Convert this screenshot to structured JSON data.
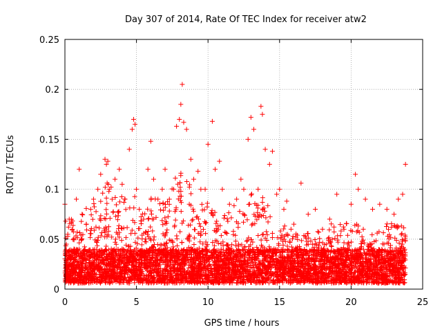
{
  "chart_data": {
    "type": "scatter",
    "title": "Day 307 of 2014, Rate Of TEC Index for receiver atw2",
    "xlabel": "GPS time / hours",
    "ylabel": "ROTI / TECUs",
    "xlim": [
      0,
      25
    ],
    "ylim": [
      0,
      0.25
    ],
    "xticks": [
      0,
      5,
      10,
      15,
      20,
      25
    ],
    "xtick_labels": [
      "0",
      "5",
      "10",
      "15",
      "20",
      "25"
    ],
    "yticks": [
      0,
      0.05,
      0.1,
      0.15,
      0.2,
      0.25
    ],
    "ytick_labels": [
      "0",
      "0.05",
      "0.1",
      "0.15",
      "0.2",
      "0.25"
    ],
    "grid": true,
    "marker": "+",
    "series": [
      {
        "name": "ROTI",
        "color": "#ff0000",
        "x": [
          0.0,
          0.05,
          0.1,
          0.15,
          0.2,
          0.3,
          0.5,
          0.8,
          1.0,
          1.2,
          1.5,
          1.8,
          2.0,
          2.3,
          2.5,
          2.8,
          2.9,
          3.0,
          3.1,
          3.3,
          3.5,
          3.8,
          4.0,
          4.2,
          4.5,
          4.7,
          4.8,
          4.9,
          5.0,
          5.2,
          5.5,
          5.8,
          6.0,
          6.2,
          6.5,
          6.8,
          7.0,
          7.3,
          7.6,
          7.8,
          8.0,
          8.1,
          8.2,
          8.3,
          8.5,
          8.8,
          9.0,
          9.3,
          9.5,
          9.8,
          10.0,
          10.3,
          10.5,
          10.8,
          11.0,
          11.5,
          12.0,
          12.3,
          12.5,
          12.8,
          13.0,
          13.2,
          13.5,
          13.7,
          13.8,
          14.0,
          14.3,
          14.5,
          14.8,
          15.0,
          15.3,
          15.5,
          15.8,
          16.0,
          16.5,
          17.0,
          17.5,
          18.0,
          18.5,
          19.0,
          19.5,
          20.0,
          20.3,
          20.5,
          21.0,
          21.5,
          22.0,
          22.5,
          23.0,
          23.3,
          23.6,
          23.8
        ],
        "y": [
          0.085,
          0.068,
          0.045,
          0.03,
          0.055,
          0.07,
          0.06,
          0.09,
          0.12,
          0.075,
          0.065,
          0.08,
          0.09,
          0.1,
          0.115,
          0.13,
          0.125,
          0.128,
          0.1,
          0.09,
          0.11,
          0.12,
          0.105,
          0.09,
          0.14,
          0.16,
          0.17,
          0.165,
          0.1,
          0.08,
          0.07,
          0.12,
          0.148,
          0.11,
          0.09,
          0.1,
          0.12,
          0.09,
          0.1,
          0.163,
          0.17,
          0.185,
          0.205,
          0.167,
          0.16,
          0.13,
          0.11,
          0.118,
          0.1,
          0.1,
          0.145,
          0.168,
          0.12,
          0.128,
          0.1,
          0.085,
          0.09,
          0.11,
          0.1,
          0.15,
          0.172,
          0.16,
          0.1,
          0.183,
          0.175,
          0.14,
          0.125,
          0.138,
          0.095,
          0.1,
          0.08,
          0.088,
          0.06,
          0.065,
          0.106,
          0.075,
          0.08,
          0.06,
          0.07,
          0.095,
          0.06,
          0.085,
          0.115,
          0.1,
          0.09,
          0.08,
          0.085,
          0.08,
          0.075,
          0.09,
          0.095,
          0.125
        ]
      }
    ]
  }
}
